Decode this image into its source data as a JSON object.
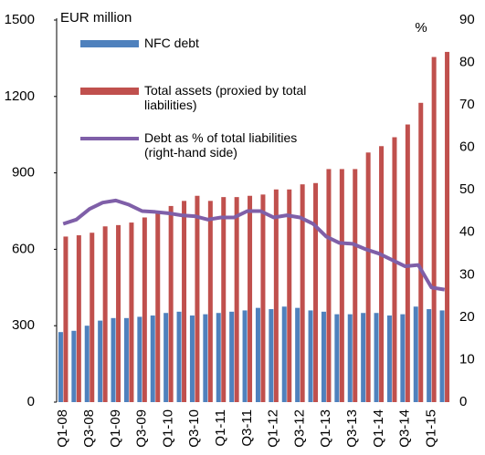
{
  "chart_data": {
    "type": "bar_line",
    "ylabel": "EUR million",
    "y2label": "%",
    "categories": [
      "Q1-08",
      null,
      "Q3-08",
      null,
      "Q1-09",
      null,
      "Q3-09",
      null,
      "Q1-10",
      null,
      "Q3-10",
      null,
      "Q1-11",
      null,
      "Q3-11",
      null,
      "Q1-12",
      null,
      "Q3-12",
      null,
      "Q1-13",
      null,
      "Q3-13",
      null,
      "Q1-14",
      null,
      "Q3-14",
      null,
      "Q1-15",
      null
    ],
    "series": [
      {
        "name": "NFC debt",
        "color": "#4f81bd",
        "type": "bar",
        "values": [
          275,
          280,
          300,
          320,
          330,
          330,
          335,
          340,
          350,
          355,
          340,
          345,
          350,
          355,
          360,
          370,
          365,
          375,
          370,
          360,
          355,
          345,
          345,
          350,
          350,
          340,
          345,
          375,
          365,
          360
        ]
      },
      {
        "name": "Total assets (proxied by total liabilities)",
        "color": "#c0504d",
        "type": "bar",
        "values": [
          650,
          655,
          665,
          690,
          695,
          705,
          725,
          745,
          770,
          790,
          810,
          790,
          805,
          805,
          810,
          815,
          835,
          835,
          855,
          860,
          915,
          915,
          915,
          980,
          1005,
          1040,
          1090,
          1175,
          1355,
          1375
        ]
      },
      {
        "name": "Debt as % of total liabilities (right-hand side)",
        "color": "#7f5fa8",
        "type": "line",
        "axis": "y2",
        "values": [
          42,
          43,
          45.5,
          47,
          47.5,
          46.5,
          45,
          44.8,
          44.5,
          44,
          43.8,
          43,
          43.5,
          43.5,
          45,
          45,
          43.5,
          44,
          43.5,
          42,
          39,
          37.5,
          37.3,
          36,
          35,
          33.5,
          32,
          32.3,
          27,
          26.5
        ]
      }
    ],
    "ylim": [
      0,
      1500
    ],
    "yticks": [
      0,
      300,
      600,
      900,
      1200,
      1500
    ],
    "y2lim": [
      0,
      90
    ],
    "y2ticks": [
      0,
      10,
      20,
      30,
      40,
      50,
      60,
      70,
      80,
      90
    ],
    "legend": "top-left",
    "grid": false
  }
}
